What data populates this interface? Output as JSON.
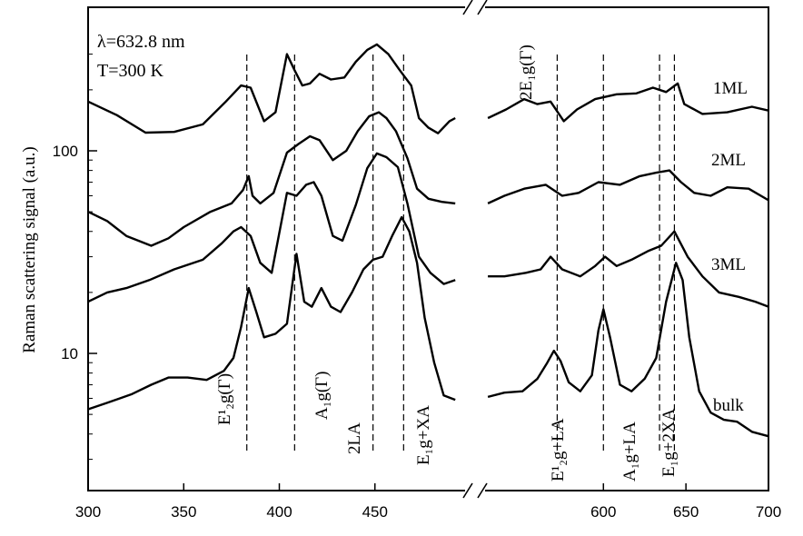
{
  "chart_data": {
    "type": "line",
    "title": "",
    "xlabel": "",
    "ylabel": "Raman scattering signal (a.u.)",
    "y_scale": "log",
    "xlim_left": [
      300,
      500
    ],
    "xlim_right": [
      525,
      700
    ],
    "x_ticks": [
      300,
      350,
      400,
      450,
      600,
      650,
      700
    ],
    "y_ticks": [
      10,
      100
    ],
    "axis_break": true,
    "annotations": [
      "λ=632.8 nm",
      "T=300 K"
    ],
    "series": [
      {
        "name": "1ML",
        "points": [
          [
            300,
            175
          ],
          [
            315,
            150
          ],
          [
            330,
            123
          ],
          [
            345,
            124
          ],
          [
            360,
            135
          ],
          [
            372,
            175
          ],
          [
            380,
            210
          ],
          [
            385,
            205
          ],
          [
            392,
            140
          ],
          [
            398,
            155
          ],
          [
            404,
            300
          ],
          [
            408,
            250
          ],
          [
            412,
            210
          ],
          [
            416,
            215
          ],
          [
            421,
            240
          ],
          [
            427,
            225
          ],
          [
            434,
            230
          ],
          [
            440,
            275
          ],
          [
            446,
            315
          ],
          [
            451,
            335
          ],
          [
            457,
            300
          ],
          [
            463,
            250
          ],
          [
            469,
            210
          ],
          [
            473,
            145
          ],
          [
            478,
            130
          ],
          [
            483,
            122
          ],
          [
            489,
            140
          ],
          [
            492,
            145
          ],
          [
            530,
            145
          ],
          [
            541,
            160
          ],
          [
            552,
            180
          ],
          [
            560,
            170
          ],
          [
            568,
            175
          ],
          [
            576,
            140
          ],
          [
            584,
            160
          ],
          [
            595,
            180
          ],
          [
            608,
            190
          ],
          [
            620,
            192
          ],
          [
            630,
            205
          ],
          [
            638,
            195
          ],
          [
            645,
            215
          ],
          [
            649,
            170
          ],
          [
            660,
            152
          ],
          [
            675,
            155
          ],
          [
            690,
            165
          ],
          [
            700,
            158
          ]
        ]
      },
      {
        "name": "2ML",
        "points": [
          [
            300,
            50
          ],
          [
            310,
            45
          ],
          [
            320,
            38
          ],
          [
            333,
            34
          ],
          [
            342,
            37
          ],
          [
            350,
            42
          ],
          [
            364,
            50
          ],
          [
            375,
            55
          ],
          [
            381,
            64
          ],
          [
            384,
            75
          ],
          [
            386,
            60
          ],
          [
            390,
            55
          ],
          [
            397,
            62
          ],
          [
            404,
            98
          ],
          [
            410,
            108
          ],
          [
            416,
            118
          ],
          [
            421,
            113
          ],
          [
            428,
            90
          ],
          [
            435,
            100
          ],
          [
            441,
            125
          ],
          [
            447,
            148
          ],
          [
            452,
            155
          ],
          [
            456,
            145
          ],
          [
            461,
            125
          ],
          [
            467,
            92
          ],
          [
            472,
            65
          ],
          [
            478,
            58
          ],
          [
            485,
            56
          ],
          [
            492,
            55
          ],
          [
            530,
            55
          ],
          [
            540,
            60
          ],
          [
            552,
            65
          ],
          [
            565,
            68
          ],
          [
            575,
            60
          ],
          [
            585,
            62
          ],
          [
            597,
            70
          ],
          [
            610,
            68
          ],
          [
            622,
            75
          ],
          [
            632,
            78
          ],
          [
            640,
            80
          ],
          [
            647,
            70
          ],
          [
            655,
            62
          ],
          [
            665,
            60
          ],
          [
            675,
            66
          ],
          [
            688,
            65
          ],
          [
            700,
            57
          ]
        ]
      },
      {
        "name": "3ML",
        "points": [
          [
            300,
            18
          ],
          [
            310,
            20
          ],
          [
            320,
            21
          ],
          [
            332,
            23
          ],
          [
            345,
            26
          ],
          [
            360,
            29
          ],
          [
            370,
            35
          ],
          [
            376,
            40
          ],
          [
            380,
            42
          ],
          [
            385,
            38
          ],
          [
            390,
            28
          ],
          [
            396,
            25
          ],
          [
            404,
            62
          ],
          [
            409,
            60
          ],
          [
            414,
            68
          ],
          [
            418,
            70
          ],
          [
            422,
            60
          ],
          [
            428,
            38
          ],
          [
            433,
            36
          ],
          [
            440,
            54
          ],
          [
            446,
            82
          ],
          [
            451,
            97
          ],
          [
            456,
            93
          ],
          [
            462,
            83
          ],
          [
            467,
            55
          ],
          [
            473,
            30
          ],
          [
            479,
            25
          ],
          [
            486,
            22
          ],
          [
            492,
            23
          ],
          [
            530,
            24
          ],
          [
            540,
            24
          ],
          [
            553,
            25
          ],
          [
            562,
            26
          ],
          [
            568,
            30
          ],
          [
            575,
            26
          ],
          [
            586,
            24
          ],
          [
            595,
            27
          ],
          [
            601,
            30
          ],
          [
            608,
            27
          ],
          [
            617,
            29
          ],
          [
            627,
            32
          ],
          [
            635,
            34
          ],
          [
            643,
            40
          ],
          [
            651,
            30
          ],
          [
            660,
            24
          ],
          [
            670,
            20
          ],
          [
            682,
            19
          ],
          [
            692,
            18
          ],
          [
            700,
            17
          ]
        ]
      },
      {
        "name": "bulk",
        "points": [
          [
            300,
            5.3
          ],
          [
            310,
            5.7
          ],
          [
            323,
            6.3
          ],
          [
            333,
            7.0
          ],
          [
            342,
            7.6
          ],
          [
            352,
            7.6
          ],
          [
            362,
            7.4
          ],
          [
            371,
            8.2
          ],
          [
            376,
            9.5
          ],
          [
            380,
            13.5
          ],
          [
            384,
            21
          ],
          [
            388,
            16
          ],
          [
            392,
            12
          ],
          [
            398,
            12.5
          ],
          [
            404,
            14
          ],
          [
            409,
            31
          ],
          [
            413,
            18
          ],
          [
            417,
            17
          ],
          [
            422,
            21
          ],
          [
            427,
            17
          ],
          [
            432,
            16
          ],
          [
            438,
            20
          ],
          [
            444,
            26
          ],
          [
            449,
            29
          ],
          [
            454,
            30
          ],
          [
            459,
            38
          ],
          [
            464,
            47
          ],
          [
            468,
            40
          ],
          [
            472,
            28
          ],
          [
            476,
            15
          ],
          [
            481,
            9
          ],
          [
            486,
            6.2
          ],
          [
            492,
            5.9
          ],
          [
            530,
            6.1
          ],
          [
            540,
            6.4
          ],
          [
            551,
            6.5
          ],
          [
            560,
            7.5
          ],
          [
            566,
            9
          ],
          [
            570,
            10.3
          ],
          [
            574,
            9.2
          ],
          [
            579,
            7.2
          ],
          [
            586,
            6.5
          ],
          [
            593,
            7.8
          ],
          [
            597,
            13
          ],
          [
            600,
            16.5
          ],
          [
            604,
            12
          ],
          [
            610,
            7
          ],
          [
            617,
            6.5
          ],
          [
            625,
            7.5
          ],
          [
            632,
            9.5
          ],
          [
            638,
            18
          ],
          [
            644,
            28
          ],
          [
            648,
            23
          ],
          [
            652,
            12
          ],
          [
            658,
            6.5
          ],
          [
            665,
            5.1
          ],
          [
            673,
            4.7
          ],
          [
            681,
            4.6
          ],
          [
            690,
            4.1
          ],
          [
            700,
            3.9
          ]
        ]
      }
    ],
    "series_labels": [
      "1ML",
      "2ML",
      "3ML",
      "bulk"
    ],
    "peak_lines": [
      {
        "x": 383,
        "label": "E¹₂g(Γ)"
      },
      {
        "x": 408,
        "label": "A₁g(Γ)"
      },
      {
        "x": 449,
        "label": "2LA"
      },
      {
        "x": 465,
        "label": "E₁g+XA"
      },
      {
        "x": 572,
        "label": "2E₁g(Γ)"
      },
      {
        "x": 600,
        "label": "E¹₂g+LA"
      },
      {
        "x": 634,
        "label": "A₁g+LA"
      },
      {
        "x": 643,
        "label": "E₁g+2XA"
      }
    ]
  }
}
